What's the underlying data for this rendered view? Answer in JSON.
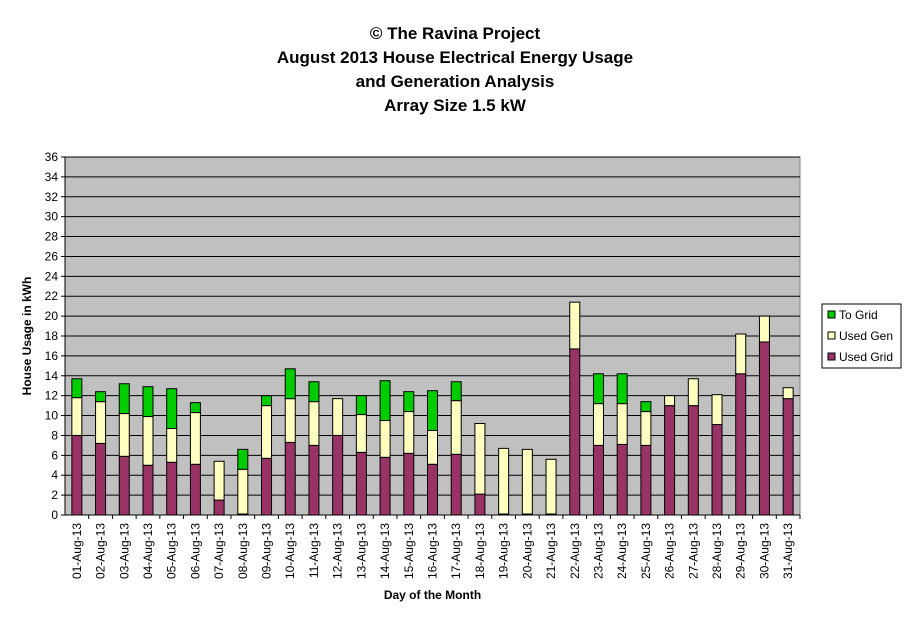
{
  "chart_data": {
    "type": "bar",
    "stacked": true,
    "title_lines": [
      "© The Ravina Project",
      "August 2013 House Electrical Energy Usage",
      "and Generation Analysis",
      "Array Size 1.5 kW"
    ],
    "xlabel": "Day of the Month",
    "ylabel": "House Usage in kWh",
    "ylim": [
      0,
      36
    ],
    "ytick_step": 2,
    "grid": true,
    "legend_position": "right",
    "plot_background": "#c0c0c0",
    "categories": [
      "01-Aug-13",
      "02-Aug-13",
      "03-Aug-13",
      "04-Aug-13",
      "05-Aug-13",
      "06-Aug-13",
      "07-Aug-13",
      "08-Aug-13",
      "09-Aug-13",
      "10-Aug-13",
      "11-Aug-13",
      "12-Aug-13",
      "13-Aug-13",
      "14-Aug-13",
      "15-Aug-13",
      "16-Aug-13",
      "17-Aug-13",
      "18-Aug-13",
      "19-Aug-13",
      "20-Aug-13",
      "21-Aug-13",
      "22-Aug-13",
      "23-Aug-13",
      "24-Aug-13",
      "25-Aug-13",
      "26-Aug-13",
      "27-Aug-13",
      "28-Aug-13",
      "29-Aug-13",
      "30-Aug-13",
      "31-Aug-13"
    ],
    "series": [
      {
        "name": "Used Grid",
        "color": "#993366",
        "values": [
          8.0,
          7.2,
          5.9,
          5.0,
          5.3,
          5.1,
          1.5,
          0.1,
          5.7,
          7.3,
          7.0,
          8.0,
          6.3,
          5.8,
          6.2,
          5.1,
          6.1,
          2.1,
          0.1,
          0.1,
          0.1,
          16.7,
          7.0,
          7.1,
          7.0,
          11.0,
          11.0,
          9.1,
          14.2,
          17.4,
          11.7
        ]
      },
      {
        "name": "Used Gen",
        "color": "#ffffc0",
        "values": [
          3.8,
          4.2,
          4.3,
          4.9,
          3.4,
          5.2,
          3.9,
          4.5,
          5.3,
          4.4,
          4.4,
          3.7,
          3.8,
          3.7,
          4.2,
          3.4,
          5.4,
          7.1,
          6.6,
          6.5,
          5.5,
          4.7,
          4.2,
          4.1,
          3.4,
          1.0,
          2.7,
          3.0,
          4.0,
          2.6,
          1.1
        ]
      },
      {
        "name": "To Grid",
        "color": "#00cc00",
        "values": [
          1.9,
          1.0,
          3.0,
          3.0,
          4.0,
          1.0,
          0.0,
          2.0,
          1.0,
          3.0,
          2.0,
          0.0,
          1.9,
          4.0,
          2.0,
          4.0,
          1.9,
          0.0,
          0.0,
          0.0,
          0.0,
          0.0,
          3.0,
          3.0,
          1.0,
          0.0,
          0.0,
          0.0,
          0.0,
          0.0,
          0.0
        ]
      }
    ],
    "legend_order": [
      "To Grid",
      "Used Gen",
      "Used Grid"
    ]
  }
}
